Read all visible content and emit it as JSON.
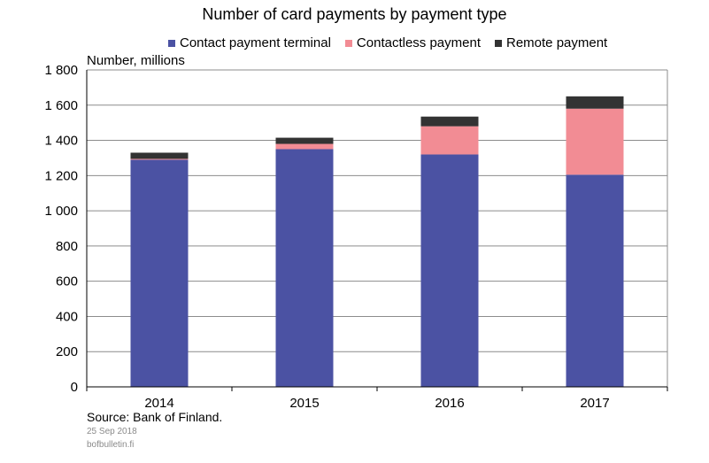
{
  "chart_data": {
    "type": "bar",
    "stacked": true,
    "title": "Number of card payments by payment type",
    "ylabel": "Number, millions",
    "xlabel": "",
    "categories": [
      "2014",
      "2015",
      "2016",
      "2017"
    ],
    "yticks": [
      "0",
      "200",
      "400",
      "600",
      "800",
      "1 000",
      "1 200",
      "1 400",
      "1 600",
      "1 800"
    ],
    "ylim": [
      0,
      1800
    ],
    "grid": true,
    "legend_position": "top",
    "series": [
      {
        "name": "Contact payment terminal",
        "color": "#4b52a3",
        "values": [
          1290,
          1350,
          1320,
          1205
        ]
      },
      {
        "name": "Contactless payment",
        "color": "#f28c94",
        "values": [
          5,
          30,
          160,
          375
        ]
      },
      {
        "name": "Remote payment",
        "color": "#333333",
        "values": [
          35,
          35,
          55,
          70
        ]
      }
    ]
  },
  "footer": {
    "source": "Source: Bank of Finland.",
    "date": "25 Sep 2018",
    "site": "bofbulletin.fi"
  }
}
